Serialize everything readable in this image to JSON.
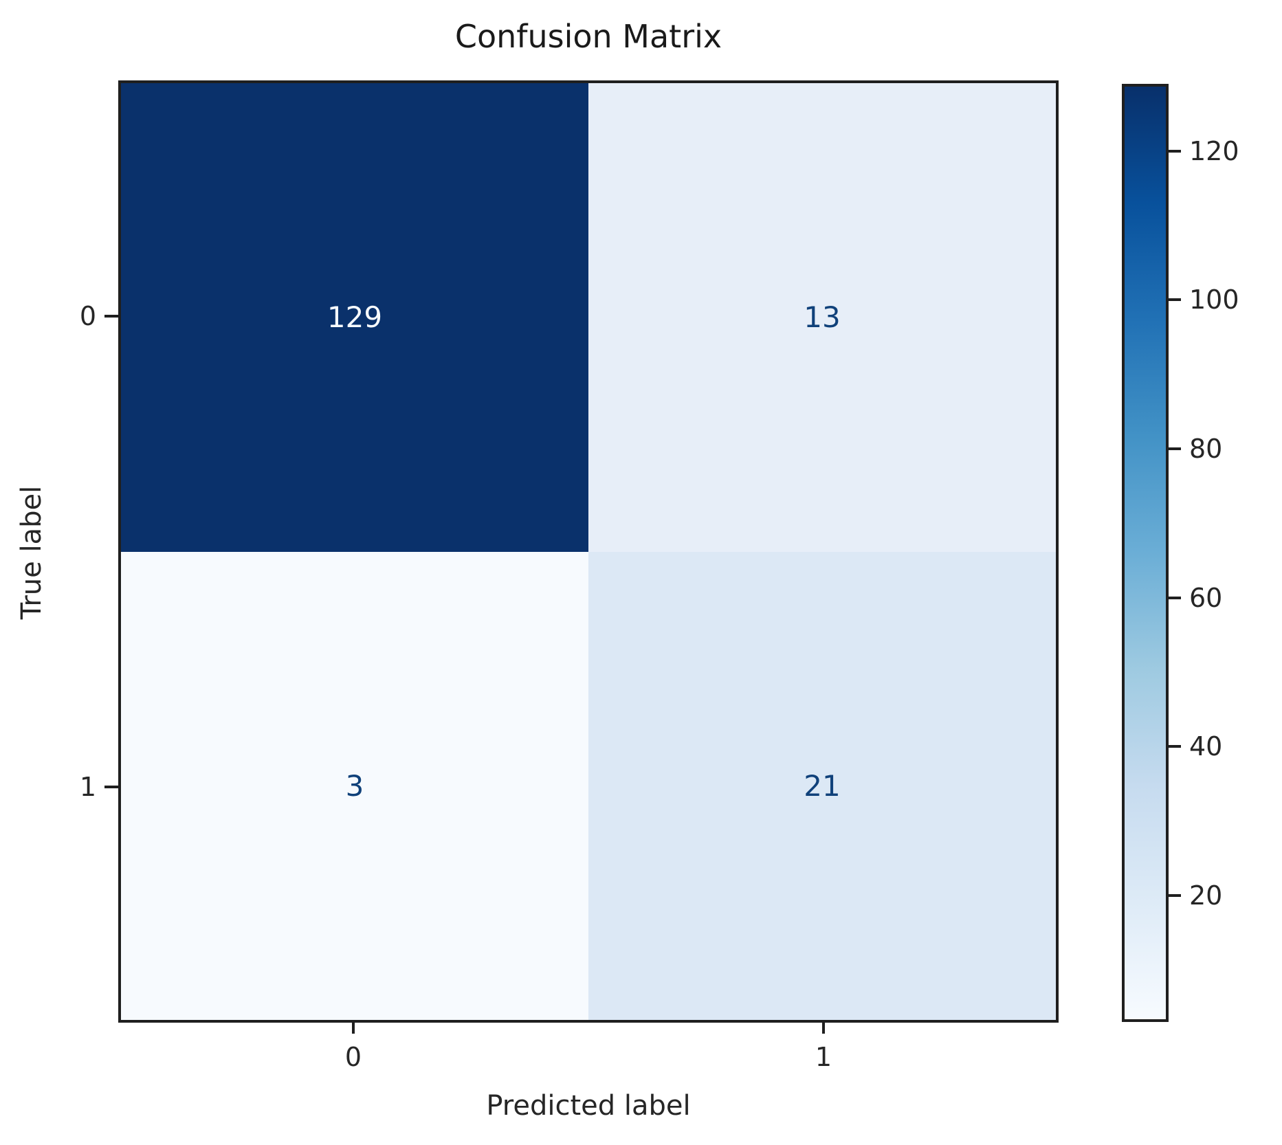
{
  "title": "Confusion Matrix",
  "chart_data": {
    "type": "heatmap",
    "title": "Confusion Matrix",
    "xlabel": "Predicted label",
    "ylabel": "True label",
    "x_tick_labels": [
      "0",
      "1"
    ],
    "y_tick_labels": [
      "0",
      "1"
    ],
    "matrix": [
      [
        129,
        13
      ],
      [
        3,
        21
      ]
    ],
    "vmin": 3,
    "vmax": 129,
    "colormap": "Blues",
    "legend_position": "right-colorbar",
    "colorbar_ticks": [
      20,
      40,
      60,
      80,
      100,
      120
    ],
    "cell_colors": [
      [
        "#0a316b",
        "#e7eef8"
      ],
      [
        "#f7fafe",
        "#dce8f5"
      ]
    ],
    "cell_text_colors": [
      [
        "#f7fbff",
        "#10417a"
      ],
      [
        "#10417a",
        "#10417a"
      ]
    ]
  },
  "colors": {
    "dark_max": "#08306b",
    "light_min": "#f7fbff",
    "spine": "#1f1f1f",
    "text": "#262626"
  }
}
